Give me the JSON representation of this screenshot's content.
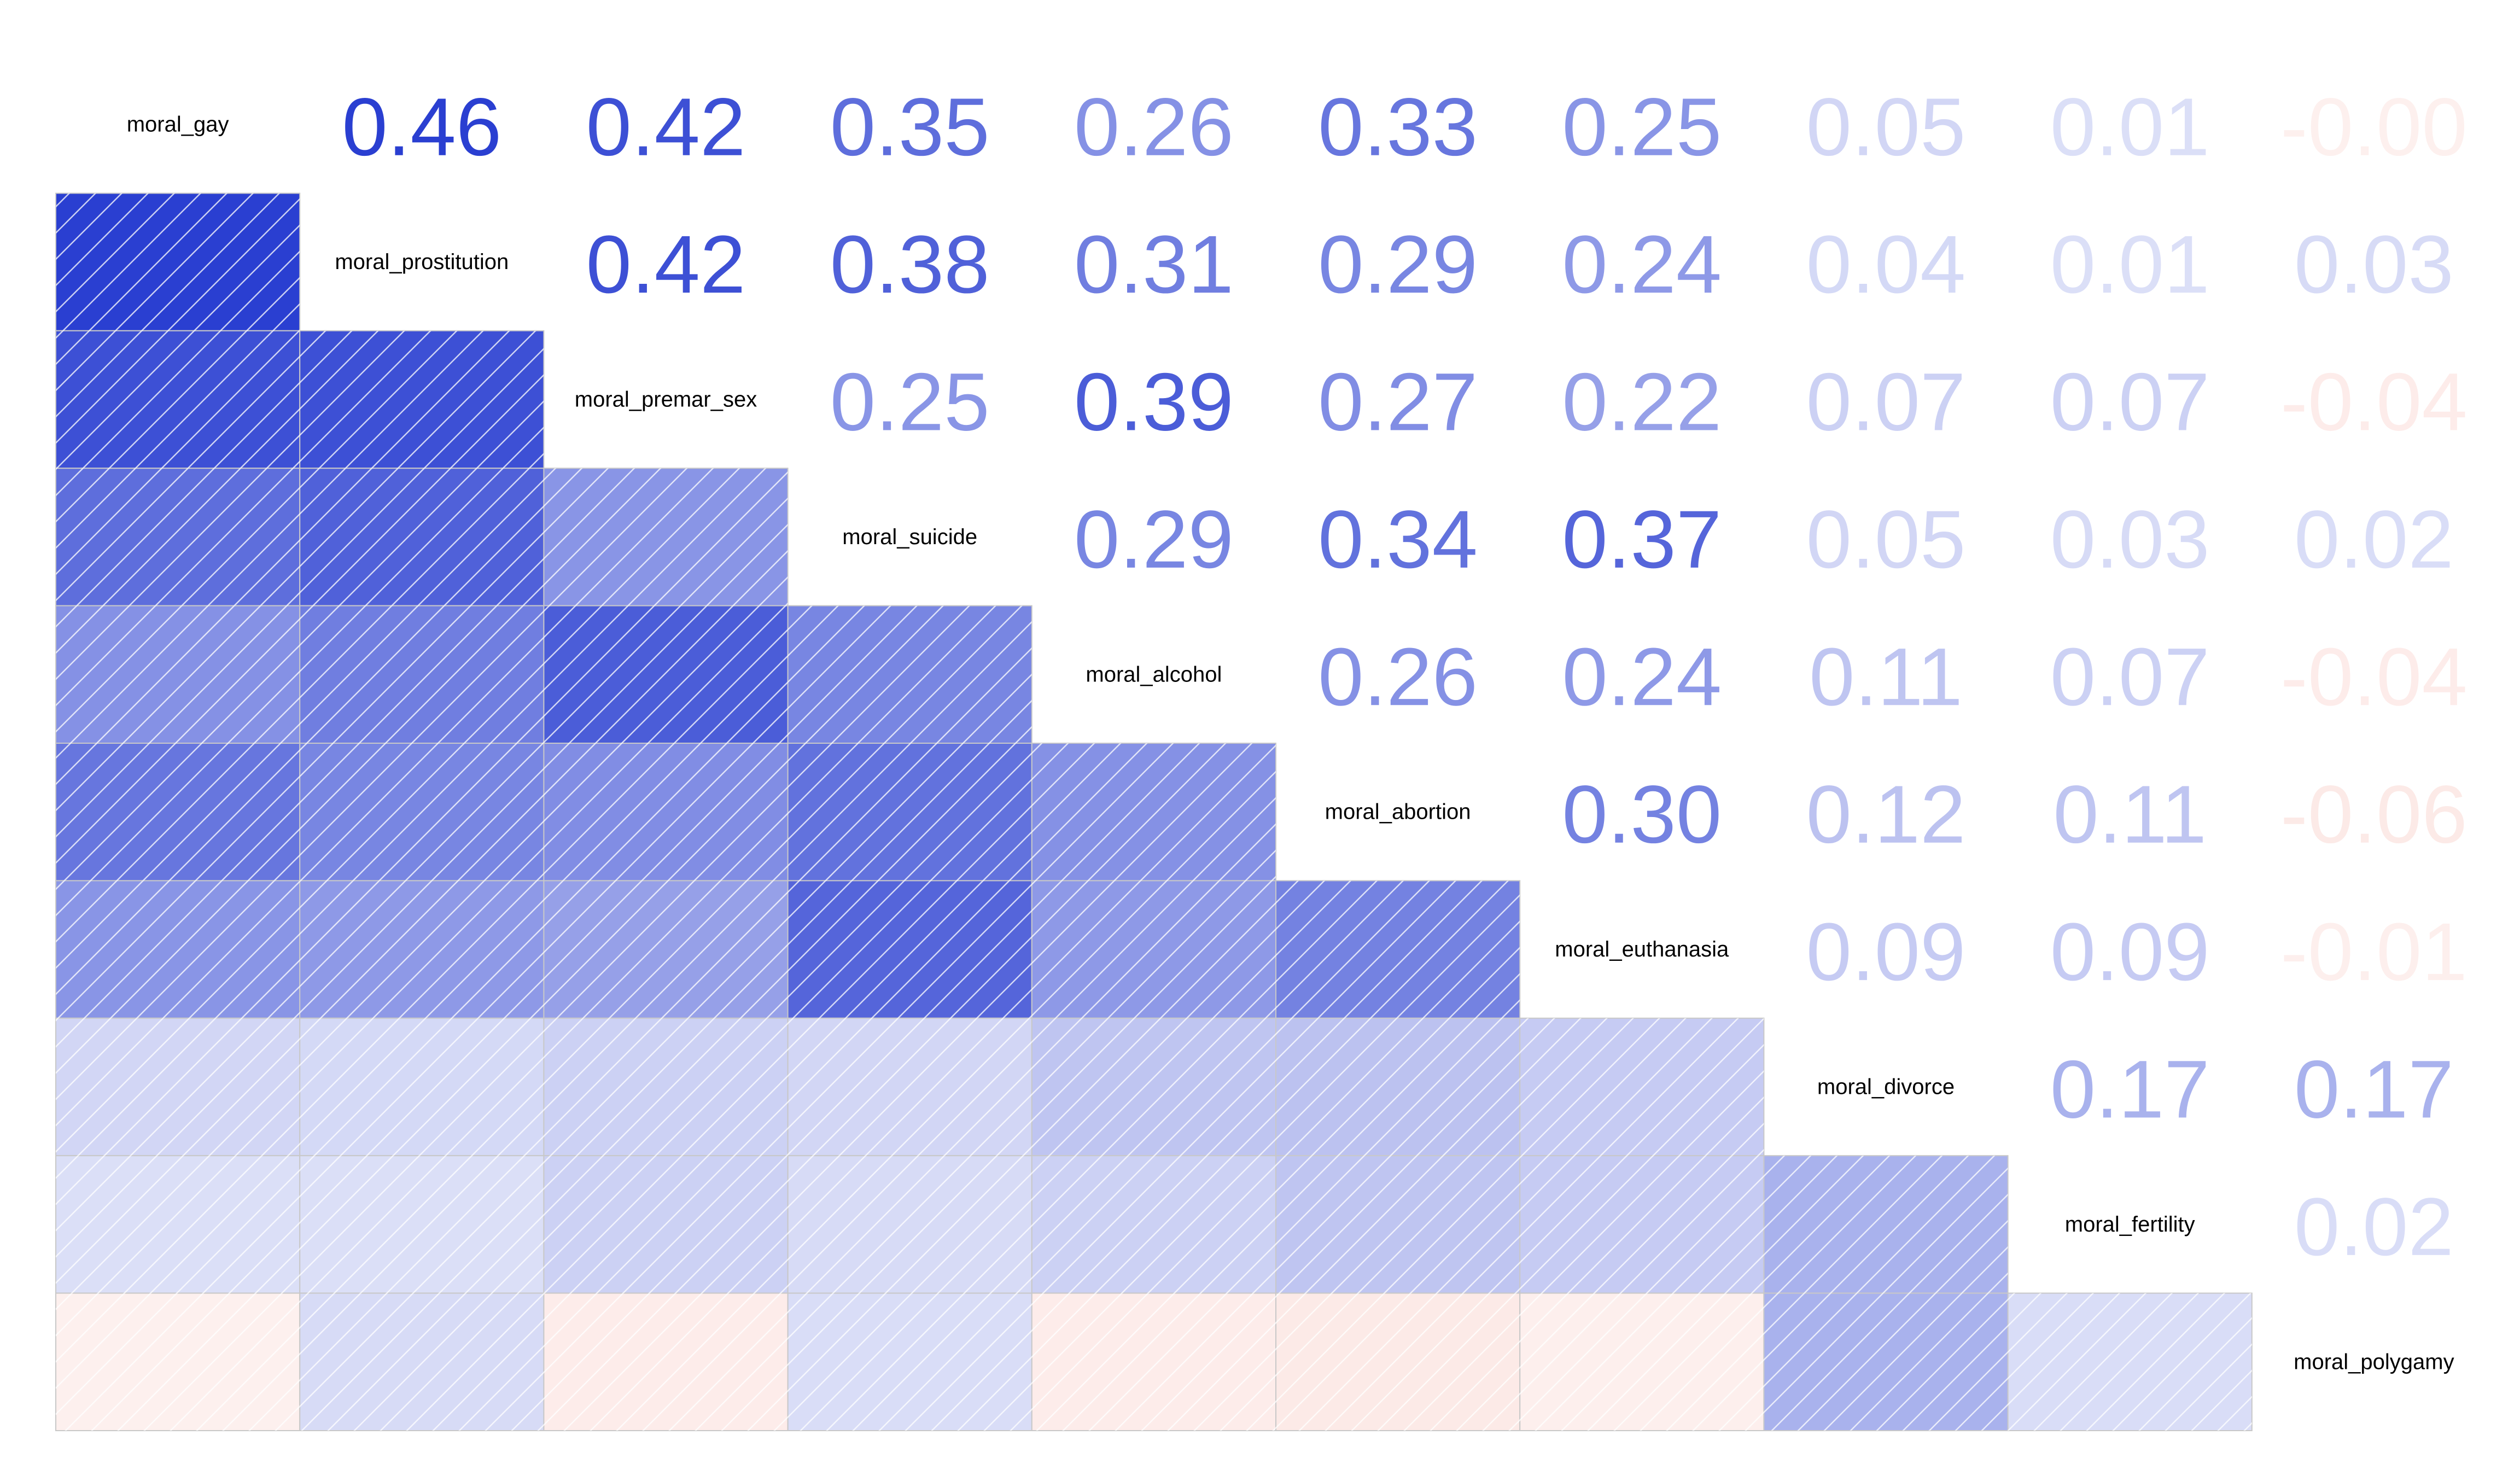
{
  "chart_data": {
    "type": "heatmap",
    "variables": [
      "moral_gay",
      "moral_prostitution",
      "moral_premar_sex",
      "moral_suicide",
      "moral_alcohol",
      "moral_abortion",
      "moral_euthanasia",
      "moral_divorce",
      "moral_fertility",
      "moral_polygamy"
    ],
    "matrix": [
      [
        1,
        0.46,
        0.42,
        0.35,
        0.26,
        0.33,
        0.25,
        0.05,
        0.01,
        -0.0
      ],
      [
        0.46,
        1,
        0.42,
        0.38,
        0.31,
        0.29,
        0.24,
        0.04,
        0.01,
        0.03
      ],
      [
        0.42,
        0.42,
        1,
        0.25,
        0.39,
        0.27,
        0.22,
        0.07,
        0.07,
        -0.04
      ],
      [
        0.35,
        0.38,
        0.25,
        1,
        0.29,
        0.34,
        0.37,
        0.05,
        0.03,
        0.02
      ],
      [
        0.26,
        0.31,
        0.39,
        0.29,
        1,
        0.26,
        0.24,
        0.11,
        0.07,
        -0.04
      ],
      [
        0.33,
        0.29,
        0.27,
        0.34,
        0.26,
        1,
        0.3,
        0.12,
        0.11,
        -0.06
      ],
      [
        0.25,
        0.24,
        0.22,
        0.37,
        0.24,
        0.3,
        1,
        0.09,
        0.09,
        -0.01
      ],
      [
        0.05,
        0.04,
        0.07,
        0.05,
        0.11,
        0.12,
        0.09,
        1,
        0.17,
        0.17
      ],
      [
        0.01,
        0.01,
        0.07,
        0.03,
        0.07,
        0.11,
        0.09,
        0.17,
        1,
        0.02
      ],
      [
        -0.0,
        0.03,
        -0.04,
        0.02,
        -0.04,
        -0.06,
        -0.01,
        0.17,
        0.02,
        1
      ]
    ],
    "upper_triangle_labels": [
      [
        "0.46",
        "0.42",
        "0.35",
        "0.26",
        "0.33",
        "0.25",
        "0.05",
        "0.01",
        "-0.00"
      ],
      [
        "0.42",
        "0.38",
        "0.31",
        "0.29",
        "0.24",
        "0.04",
        "0.01",
        "0.03"
      ],
      [
        "0.25",
        "0.39",
        "0.27",
        "0.22",
        "0.07",
        "0.07",
        "-0.04"
      ],
      [
        "0.29",
        "0.34",
        "0.37",
        "0.05",
        "0.03",
        "0.02"
      ],
      [
        "0.26",
        "0.24",
        "0.11",
        "0.07",
        "-0.04"
      ],
      [
        "0.30",
        "0.12",
        "0.11",
        "-0.06"
      ],
      [
        "0.09",
        "0.09",
        "-0.01"
      ],
      [
        "0.17",
        "0.17"
      ],
      [
        "0.02"
      ]
    ],
    "lower_triangle": "shaded tiles with diagonal hatching",
    "upper_triangle": "correlation values as text",
    "diagonal": "variable names",
    "value_range": [
      -1,
      1
    ],
    "colors": {
      "positive": "#2a3fd1",
      "negative": "#f3a096",
      "zero": "#ffffff",
      "grid": "#c8c8c8",
      "hatch": "#ffffff"
    },
    "grid": true,
    "legend": "none",
    "title": "",
    "xlabel": "",
    "ylabel": ""
  }
}
